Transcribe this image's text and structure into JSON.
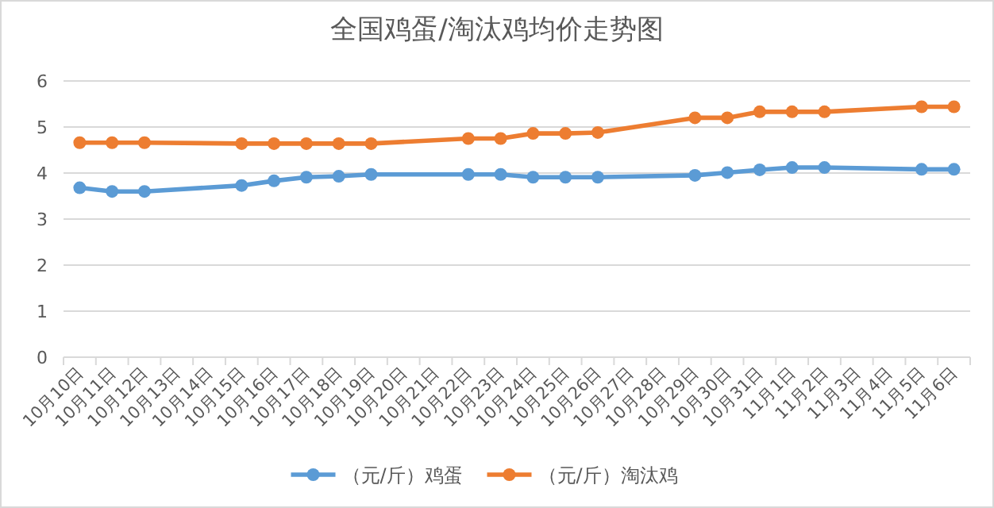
{
  "chart_data": {
    "type": "line",
    "title": "全国鸡蛋/淘汰鸡均价走势图",
    "categories": [
      "10月10日",
      "10月11日",
      "10月12日",
      "10月13日",
      "10月14日",
      "10月15日",
      "10月16日",
      "10月17日",
      "10月18日",
      "10月19日",
      "10月20日",
      "10月21日",
      "10月22日",
      "10月23日",
      "10月24日",
      "10月25日",
      "10月26日",
      "10月27日",
      "10月28日",
      "10月29日",
      "10月30日",
      "10月31日",
      "11月1日",
      "11月2日",
      "11月3日",
      "11月4日",
      "11月5日",
      "11月6日"
    ],
    "ylim": [
      0,
      6
    ],
    "yticks": [
      0,
      1,
      2,
      3,
      4,
      5,
      6
    ],
    "grid": "y",
    "legend": "bottom",
    "marker": "circle",
    "line_style": "solid",
    "series": [
      {
        "name": "（元/斤）鸡蛋",
        "color": "#5b9bd5",
        "values": [
          3.68,
          3.6,
          3.6,
          null,
          null,
          3.73,
          3.83,
          3.91,
          3.93,
          3.97,
          null,
          null,
          3.97,
          3.97,
          3.91,
          3.91,
          3.91,
          null,
          null,
          3.95,
          4.01,
          4.07,
          4.12,
          4.12,
          null,
          null,
          4.08,
          4.08
        ]
      },
      {
        "name": "（元/斤）淘汰鸡",
        "color": "#ed7d31",
        "values": [
          4.66,
          4.66,
          4.66,
          null,
          null,
          4.64,
          4.64,
          4.64,
          4.64,
          4.64,
          null,
          null,
          4.75,
          4.75,
          4.86,
          4.86,
          4.88,
          null,
          null,
          5.2,
          5.2,
          5.33,
          5.33,
          5.33,
          null,
          null,
          5.44,
          5.44
        ]
      }
    ]
  }
}
